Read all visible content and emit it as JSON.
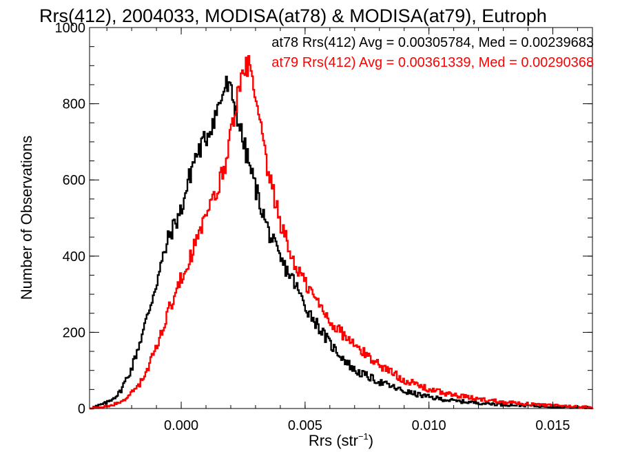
{
  "chart_data": {
    "type": "histogram",
    "title": "Rrs(412), 2004033, MODISA(at78) & MODISA(at79), Eutroph",
    "xlabel_main": "Rrs (str",
    "xlabel_sup": "−1",
    "xlabel_tail": ")",
    "ylabel": "Number of Observations",
    "xlim": [
      -0.0037,
      0.0166
    ],
    "ylim": [
      0,
      1000
    ],
    "xticks": [
      0.0,
      0.005,
      0.01,
      0.015
    ],
    "xtick_labels": [
      "0.000",
      "0.005",
      "0.010",
      "0.015"
    ],
    "yticks": [
      0,
      200,
      400,
      600,
      800,
      1000
    ],
    "ytick_labels": [
      "0",
      "200",
      "400",
      "600",
      "800",
      "1000"
    ],
    "grid": false,
    "legend_position": "top-right",
    "series": [
      {
        "name": "at78",
        "legend_text": "at78 Rrs(412) Avg = 0.00305784, Med = 0.00239683",
        "color": "#000000",
        "x": [
          -0.0037,
          -0.003,
          -0.0025,
          -0.002,
          -0.0015,
          -0.001,
          -0.0005,
          0.0,
          0.0005,
          0.001,
          0.0015,
          0.0018,
          0.002,
          0.0022,
          0.0025,
          0.003,
          0.0035,
          0.004,
          0.0045,
          0.005,
          0.0055,
          0.006,
          0.007,
          0.008,
          0.009,
          0.01,
          0.011,
          0.012,
          0.013,
          0.014,
          0.015,
          0.0166
        ],
        "y": [
          0,
          15,
          40,
          105,
          210,
          330,
          450,
          520,
          650,
          710,
          790,
          850,
          830,
          790,
          700,
          580,
          470,
          390,
          340,
          270,
          220,
          170,
          100,
          70,
          45,
          30,
          20,
          15,
          10,
          8,
          5,
          2
        ]
      },
      {
        "name": "at79",
        "legend_text": "at79 Rrs(412) Avg = 0.00361339, Med = 0.00290368",
        "color": "#ff0000",
        "x": [
          -0.0037,
          -0.003,
          -0.0025,
          -0.002,
          -0.0015,
          -0.001,
          -0.0005,
          0.0,
          0.0005,
          0.001,
          0.0015,
          0.0018,
          0.002,
          0.0022,
          0.0025,
          0.0027,
          0.003,
          0.0035,
          0.004,
          0.0045,
          0.005,
          0.0055,
          0.006,
          0.007,
          0.008,
          0.009,
          0.01,
          0.011,
          0.012,
          0.013,
          0.014,
          0.015,
          0.0166
        ],
        "y": [
          0,
          5,
          15,
          40,
          80,
          160,
          260,
          340,
          420,
          500,
          580,
          650,
          720,
          800,
          870,
          910,
          810,
          620,
          490,
          390,
          330,
          280,
          230,
          165,
          115,
          75,
          50,
          35,
          25,
          18,
          12,
          8,
          3
        ]
      }
    ]
  }
}
